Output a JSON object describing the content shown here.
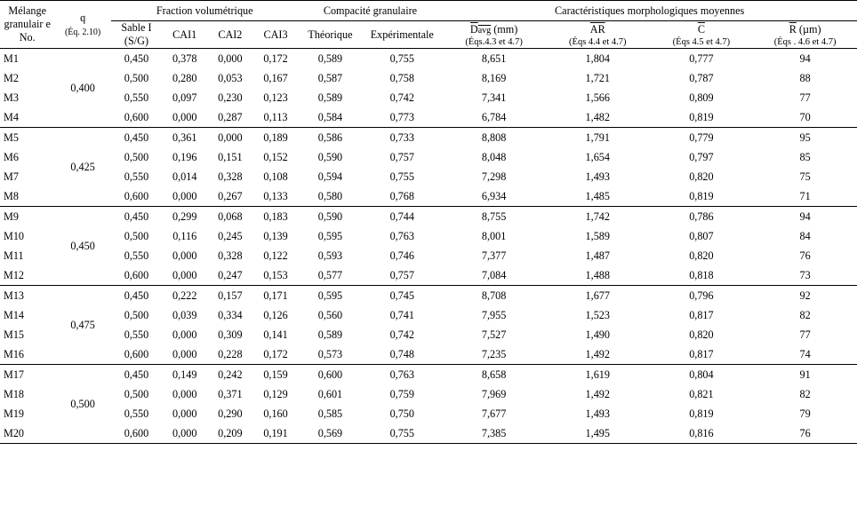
{
  "headers": {
    "melange": "Mélange granulair e No.",
    "q": "q",
    "q_sub": "(Éq. 2.10)",
    "frac_vol": "Fraction volumétrique",
    "compacite": "Compacité granulaire",
    "morpho": "Caractéristiques morphologiques moyennes",
    "sable": "Sable I (S/G)",
    "cai1": "CAI1",
    "cai2": "CAI2",
    "cai3": "CAI3",
    "theorique": "Théorique",
    "experimentale": "Expérimentale",
    "davg": "D",
    "davg_sub": "avg",
    "davg_unit": " (mm)",
    "davg_eq": "(Éqs.4.3 et 4.7)",
    "ar": "AR",
    "ar_eq": "(Éqs 4.4 et 4.7)",
    "c": "C",
    "c_eq": "(Éqs 4.5 et 4.7)",
    "r": "R",
    "r_unit": " (µm)",
    "r_eq": "(Éqs . 4.6 et 4.7)"
  },
  "groups": [
    {
      "q": "0,400",
      "rows": [
        {
          "m": "M1",
          "s": "0,450",
          "c1": "0,378",
          "c2": "0,000",
          "c3": "0,172",
          "t": "0,589",
          "e": "0,755",
          "d": "8,651",
          "ar": "1,804",
          "cc": "0,777",
          "r": "94"
        },
        {
          "m": "M2",
          "s": "0,500",
          "c1": "0,280",
          "c2": "0,053",
          "c3": "0,167",
          "t": "0,587",
          "e": "0,758",
          "d": "8,169",
          "ar": "1,721",
          "cc": "0,787",
          "r": "88"
        },
        {
          "m": "M3",
          "s": "0,550",
          "c1": "0,097",
          "c2": "0,230",
          "c3": "0,123",
          "t": "0,589",
          "e": "0,742",
          "d": "7,341",
          "ar": "1,566",
          "cc": "0,809",
          "r": "77"
        },
        {
          "m": "M4",
          "s": "0,600",
          "c1": "0,000",
          "c2": "0,287",
          "c3": "0,113",
          "t": "0,584",
          "e": "0,773",
          "d": "6,784",
          "ar": "1,482",
          "cc": "0,819",
          "r": "70"
        }
      ]
    },
    {
      "q": "0,425",
      "rows": [
        {
          "m": "M5",
          "s": "0,450",
          "c1": "0,361",
          "c2": "0,000",
          "c3": "0,189",
          "t": "0,586",
          "e": "0,733",
          "d": "8,808",
          "ar": "1,791",
          "cc": "0,779",
          "r": "95"
        },
        {
          "m": "M6",
          "s": "0,500",
          "c1": "0,196",
          "c2": "0,151",
          "c3": "0,152",
          "t": "0,590",
          "e": "0,757",
          "d": "8,048",
          "ar": "1,654",
          "cc": "0,797",
          "r": "85"
        },
        {
          "m": "M7",
          "s": "0,550",
          "c1": "0,014",
          "c2": "0,328",
          "c3": "0,108",
          "t": "0,594",
          "e": "0,755",
          "d": "7,298",
          "ar": "1,493",
          "cc": "0,820",
          "r": "75"
        },
        {
          "m": "M8",
          "s": "0,600",
          "c1": "0,000",
          "c2": "0,267",
          "c3": "0,133",
          "t": "0,580",
          "e": "0,768",
          "d": "6,934",
          "ar": "1,485",
          "cc": "0,819",
          "r": "71"
        }
      ]
    },
    {
      "q": "0,450",
      "rows": [
        {
          "m": "M9",
          "s": "0,450",
          "c1": "0,299",
          "c2": "0,068",
          "c3": "0,183",
          "t": "0,590",
          "e": "0,744",
          "d": "8,755",
          "ar": "1,742",
          "cc": "0,786",
          "r": "94"
        },
        {
          "m": "M10",
          "s": "0,500",
          "c1": "0,116",
          "c2": "0,245",
          "c3": "0,139",
          "t": "0,595",
          "e": "0,763",
          "d": "8,001",
          "ar": "1,589",
          "cc": "0,807",
          "r": "84"
        },
        {
          "m": "M11",
          "s": "0,550",
          "c1": "0,000",
          "c2": "0,328",
          "c3": "0,122",
          "t": "0,593",
          "e": "0,746",
          "d": "7,377",
          "ar": "1,487",
          "cc": "0,820",
          "r": "76"
        },
        {
          "m": "M12",
          "s": "0,600",
          "c1": "0,000",
          "c2": "0,247",
          "c3": "0,153",
          "t": "0,577",
          "e": "0,757",
          "d": "7,084",
          "ar": "1,488",
          "cc": "0,818",
          "r": "73"
        }
      ]
    },
    {
      "q": "0,475",
      "rows": [
        {
          "m": "M13",
          "s": "0,450",
          "c1": "0,222",
          "c2": "0,157",
          "c3": "0,171",
          "t": "0,595",
          "e": "0,745",
          "d": "8,708",
          "ar": "1,677",
          "cc": "0,796",
          "r": "92"
        },
        {
          "m": "M14",
          "s": "0,500",
          "c1": "0,039",
          "c2": "0,334",
          "c3": "0,126",
          "t": "0,560",
          "e": "0,741",
          "d": "7,955",
          "ar": "1,523",
          "cc": "0,817",
          "r": "82"
        },
        {
          "m": "M15",
          "s": "0,550",
          "c1": "0,000",
          "c2": "0,309",
          "c3": "0,141",
          "t": "0,589",
          "e": "0,742",
          "d": "7,527",
          "ar": "1,490",
          "cc": "0,820",
          "r": "77"
        },
        {
          "m": "M16",
          "s": "0,600",
          "c1": "0,000",
          "c2": "0,228",
          "c3": "0,172",
          "t": "0,573",
          "e": "0,748",
          "d": "7,235",
          "ar": "1,492",
          "cc": "0,817",
          "r": "74"
        }
      ]
    },
    {
      "q": "0,500",
      "rows": [
        {
          "m": "M17",
          "s": "0,450",
          "c1": "0,149",
          "c2": "0,242",
          "c3": "0,159",
          "t": "0,600",
          "e": "0,763",
          "d": "8,658",
          "ar": "1,619",
          "cc": "0,804",
          "r": "91"
        },
        {
          "m": "M18",
          "s": "0,500",
          "c1": "0,000",
          "c2": "0,371",
          "c3": "0,129",
          "t": "0,601",
          "e": "0,759",
          "d": "7,969",
          "ar": "1,492",
          "cc": "0,821",
          "r": "82"
        },
        {
          "m": "M19",
          "s": "0,550",
          "c1": "0,000",
          "c2": "0,290",
          "c3": "0,160",
          "t": "0,585",
          "e": "0,750",
          "d": "7,677",
          "ar": "1,493",
          "cc": "0,819",
          "r": "79"
        },
        {
          "m": "M20",
          "s": "0,600",
          "c1": "0,000",
          "c2": "0,209",
          "c3": "0,191",
          "t": "0,569",
          "e": "0,755",
          "d": "7,385",
          "ar": "1,495",
          "cc": "0,816",
          "r": "76"
        }
      ]
    }
  ],
  "style": {
    "font_family": "Times New Roman",
    "font_size_pt": 12,
    "bg": "#ffffff",
    "fg": "#000000",
    "rule": "#000000"
  }
}
